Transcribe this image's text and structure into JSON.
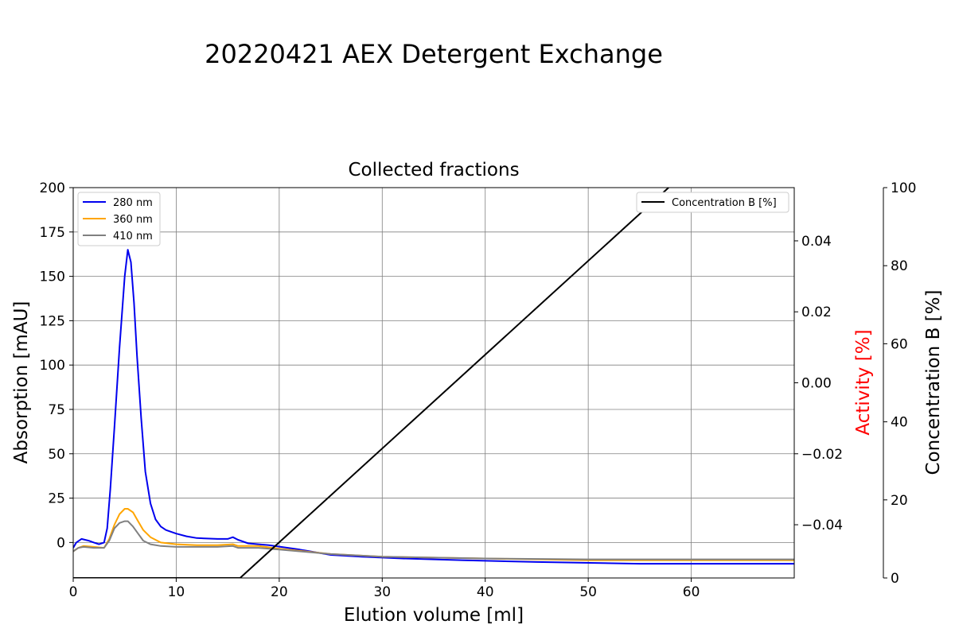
{
  "chart_data": {
    "type": "line",
    "suptitle": "20220421 AEX Detergent Exchange",
    "title": "Collected fractions",
    "xlabel": "Elution volume [ml]",
    "ylabel_left": "Absorption [mAU]",
    "ylabel_right_activity": "Activity [%]",
    "ylabel_right_concentration": "Concentration B [%]",
    "colors": {
      "280 nm": "#0000ee",
      "360 nm": "#ffa500",
      "410 nm": "#808080",
      "Concentration B [%]": "#000000",
      "activity_label": "#ff0000"
    },
    "xlim": [
      0,
      70
    ],
    "ylim_absorption": [
      -20,
      200
    ],
    "ylim_activity": [
      -0.055,
      0.055
    ],
    "ylim_concentration": [
      0,
      100
    ],
    "grid": true,
    "legend_left_placement": "upper-left",
    "legend_right_placement": "upper-right",
    "x_ticks": [
      0,
      10,
      20,
      30,
      40,
      50,
      60
    ],
    "x_tick_labels": [
      "0",
      "10",
      "20",
      "30",
      "40",
      "50",
      "60"
    ],
    "y_ticks_absorption": [
      0,
      25,
      50,
      75,
      100,
      125,
      150,
      175,
      200
    ],
    "y_tick_labels_absorption": [
      "0",
      "25",
      "50",
      "75",
      "100",
      "125",
      "150",
      "175",
      "200"
    ],
    "y_ticks_activity": [
      -0.04,
      -0.02,
      0.0,
      0.02,
      0.04
    ],
    "y_tick_labels_activity": [
      "−0.04",
      "−0.02",
      "0.00",
      "0.02",
      "0.04"
    ],
    "y_ticks_concentration": [
      0,
      20,
      40,
      60,
      80,
      100
    ],
    "y_tick_labels_concentration": [
      "0",
      "20",
      "40",
      "60",
      "80",
      "100"
    ],
    "series": [
      {
        "name": "280 nm",
        "axis": "absorption",
        "x": [
          0,
          0.3,
          0.8,
          1.5,
          2.0,
          2.5,
          3.0,
          3.3,
          3.6,
          4.0,
          4.5,
          5.0,
          5.3,
          5.6,
          5.9,
          6.2,
          6.6,
          7.0,
          7.5,
          8.0,
          8.5,
          9.0,
          10,
          11,
          12,
          14,
          15,
          15.5,
          16,
          17,
          19,
          22,
          25,
          28,
          32,
          38,
          45,
          55,
          65,
          70
        ],
        "values": [
          -3,
          0,
          2,
          1,
          0,
          -1,
          0,
          8,
          30,
          65,
          110,
          150,
          165,
          158,
          135,
          105,
          70,
          40,
          22,
          13,
          9,
          7,
          5,
          3.5,
          2.5,
          2,
          2,
          3,
          1.5,
          -0.5,
          -1.5,
          -4,
          -7,
          -8,
          -9,
          -10,
          -11,
          -12,
          -12,
          -12
        ]
      },
      {
        "name": "360 nm",
        "axis": "absorption",
        "x": [
          0,
          0.5,
          1,
          2,
          3,
          3.5,
          4,
          4.5,
          5.0,
          5.3,
          5.8,
          6.3,
          6.8,
          7.5,
          8.5,
          10,
          12,
          14,
          15.5,
          16,
          18,
          20,
          25,
          30,
          40,
          50,
          60,
          70
        ],
        "values": [
          -5,
          -3,
          -2,
          -2.5,
          -3,
          2,
          10,
          16,
          19,
          19,
          17,
          12,
          7,
          3,
          0,
          -1,
          -1.5,
          -1.5,
          -1,
          -2,
          -2,
          -3.5,
          -6.5,
          -8,
          -9,
          -10,
          -10,
          -10
        ]
      },
      {
        "name": "410 nm",
        "axis": "absorption",
        "x": [
          0,
          0.5,
          1,
          2,
          3,
          3.5,
          4,
          4.5,
          5.0,
          5.3,
          5.8,
          6.3,
          6.8,
          7.5,
          8.5,
          10,
          12,
          14,
          15.5,
          16,
          18,
          20,
          25,
          30,
          40,
          50,
          60,
          70
        ],
        "values": [
          -5,
          -3,
          -2.5,
          -3,
          -3,
          1,
          8,
          11,
          12,
          12,
          9,
          5,
          1,
          -1,
          -2,
          -2.5,
          -2.5,
          -2.5,
          -2,
          -3,
          -3,
          -4,
          -6.5,
          -8,
          -9,
          -9.5,
          -9.5,
          -9.5
        ]
      },
      {
        "name": "Concentration B [%]",
        "axis": "concentration",
        "x": [
          0,
          16.2,
          57.8
        ],
        "values": [
          0,
          0,
          100
        ]
      }
    ]
  }
}
